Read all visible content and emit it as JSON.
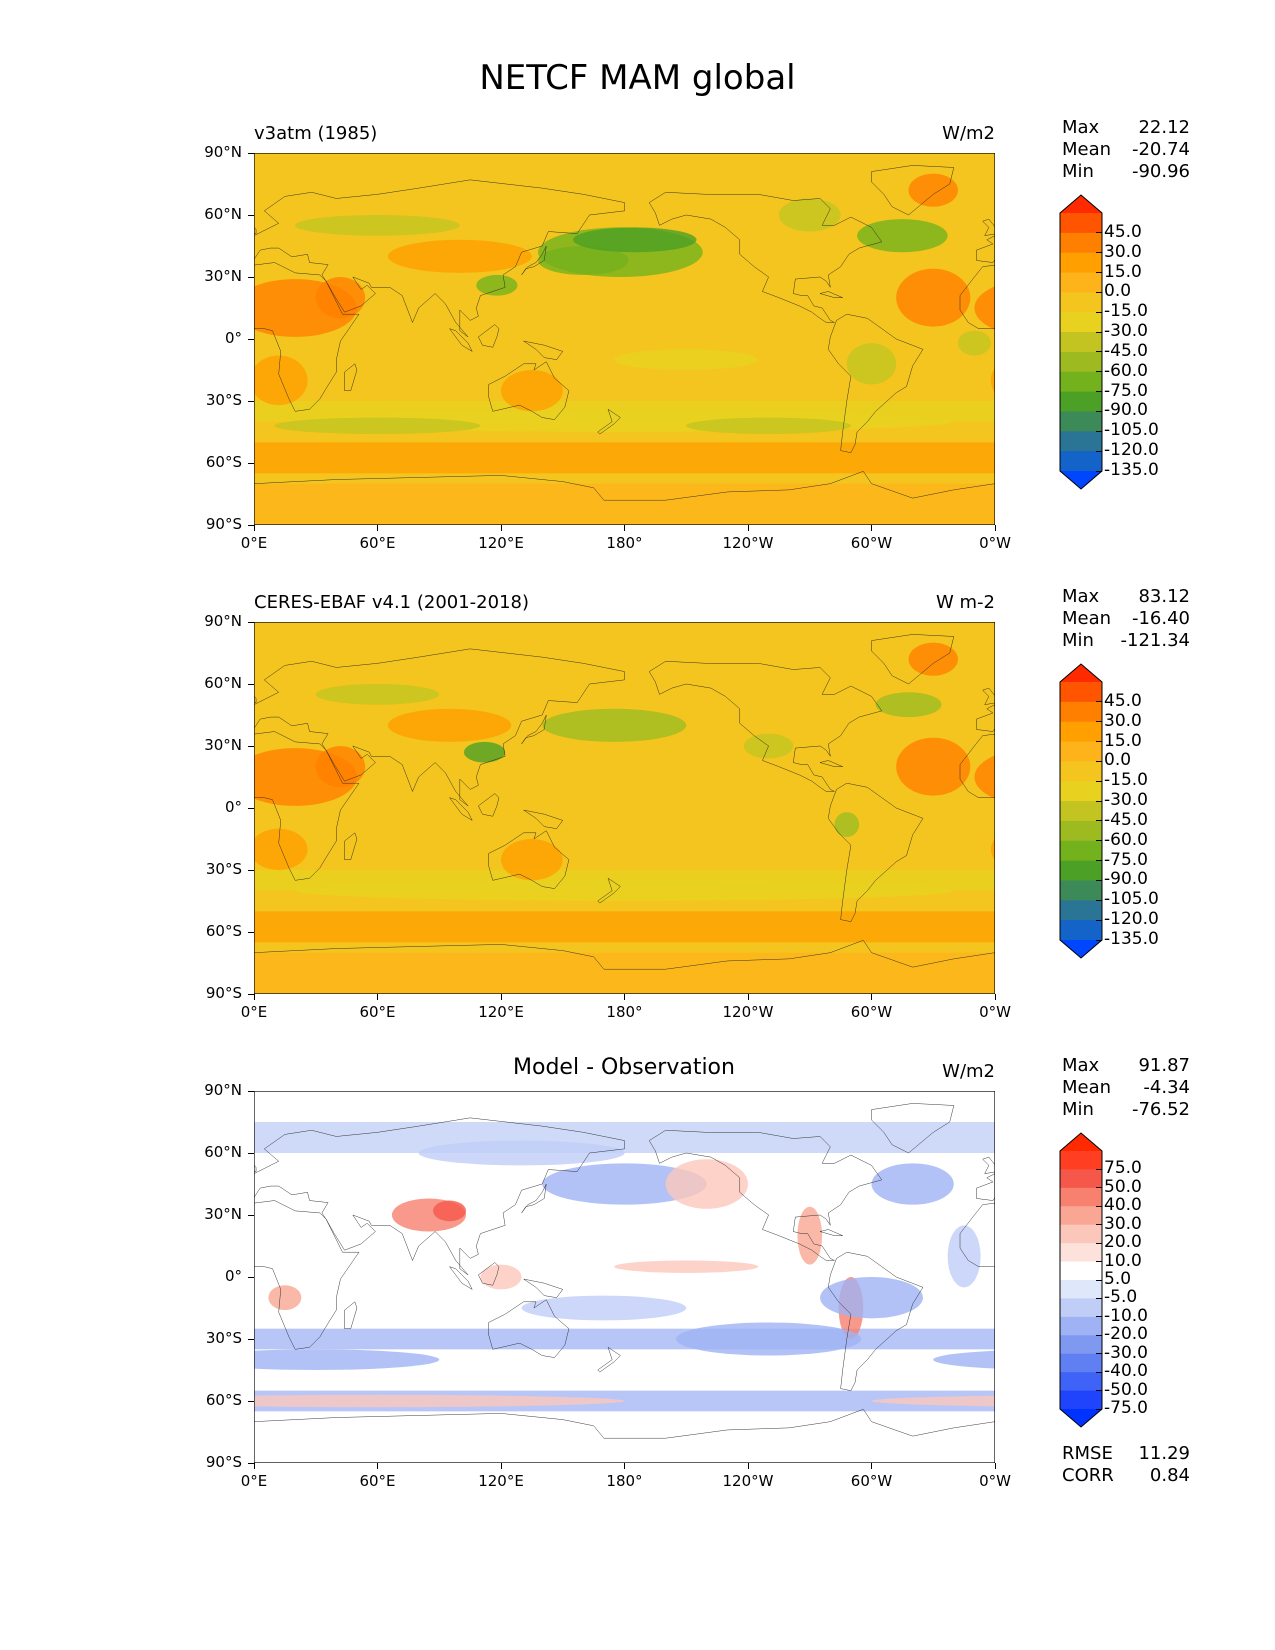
{
  "title": "NETCF MAM global",
  "lat_labels": [
    "90°N",
    "60°N",
    "30°N",
    "0°",
    "30°S",
    "60°S",
    "90°S"
  ],
  "lon_labels": [
    "0°E",
    "60°E",
    "120°E",
    "180°",
    "120°W",
    "60°W",
    "0°W"
  ],
  "panels": [
    {
      "title": "v3atm (1985)",
      "units": "W/m2",
      "stats": {
        "max_label": "Max",
        "max": "22.12",
        "mean_label": "Mean",
        "mean": "-20.74",
        "min_label": "Min",
        "min": "-90.96"
      },
      "colorbar": {
        "labels": [
          "45.0",
          "30.0",
          "15.0",
          "0.0",
          "-15.0",
          "-30.0",
          "-45.0",
          "-60.0",
          "-75.0",
          "-90.0",
          "-105.0",
          "-120.0",
          "-135.0"
        ],
        "colors": [
          "#ff2a00",
          "#ff5400",
          "#ff7f00",
          "#ff9f00",
          "#ffb31a",
          "#f4c51e",
          "#e8d21f",
          "#c3c421",
          "#9dbb20",
          "#74b21d",
          "#4ca026",
          "#3c8a58",
          "#2a7495",
          "#1463c8",
          "#0046ff"
        ]
      }
    },
    {
      "title": "CERES-EBAF v4.1 (2001-2018)",
      "units": "W m-2",
      "stats": {
        "max_label": "Max",
        "max": "83.12",
        "mean_label": "Mean",
        "mean": "-16.40",
        "min_label": "Min",
        "min": "-121.34"
      },
      "colorbar": {
        "labels": [
          "45.0",
          "30.0",
          "15.0",
          "0.0",
          "-15.0",
          "-30.0",
          "-45.0",
          "-60.0",
          "-75.0",
          "-90.0",
          "-105.0",
          "-120.0",
          "-135.0"
        ],
        "colors": [
          "#ff2a00",
          "#ff5400",
          "#ff7f00",
          "#ff9f00",
          "#ffb31a",
          "#f4c51e",
          "#e8d21f",
          "#c3c421",
          "#9dbb20",
          "#74b21d",
          "#4ca026",
          "#3c8a58",
          "#2a7495",
          "#1463c8",
          "#0046ff"
        ]
      }
    },
    {
      "title": "Model - Observation",
      "units": "W/m2",
      "stats": {
        "max_label": "Max",
        "max": "91.87",
        "mean_label": "Mean",
        "mean": "-4.34",
        "min_label": "Min",
        "min": "-76.52"
      },
      "colorbar": {
        "labels": [
          "75.0",
          "50.0",
          "40.0",
          "30.0",
          "20.0",
          "10.0",
          "5.0",
          "-5.0",
          "-10.0",
          "-20.0",
          "-30.0",
          "-40.0",
          "-50.0",
          "-75.0"
        ],
        "colors": [
          "#ff2a00",
          "#ff3e22",
          "#f5584a",
          "#f7806e",
          "#f9a694",
          "#fbc7bb",
          "#fde2dc",
          "#ffffff",
          "#dfe7fb",
          "#bfcdf7",
          "#9fb3f4",
          "#7f99f1",
          "#5f7ff2",
          "#3f63f6",
          "#1f44fb",
          "#0033ff"
        ]
      },
      "extra_stats": {
        "rmse_label": "RMSE",
        "rmse": "11.29",
        "corr_label": "CORR",
        "corr": "0.84"
      }
    }
  ]
}
